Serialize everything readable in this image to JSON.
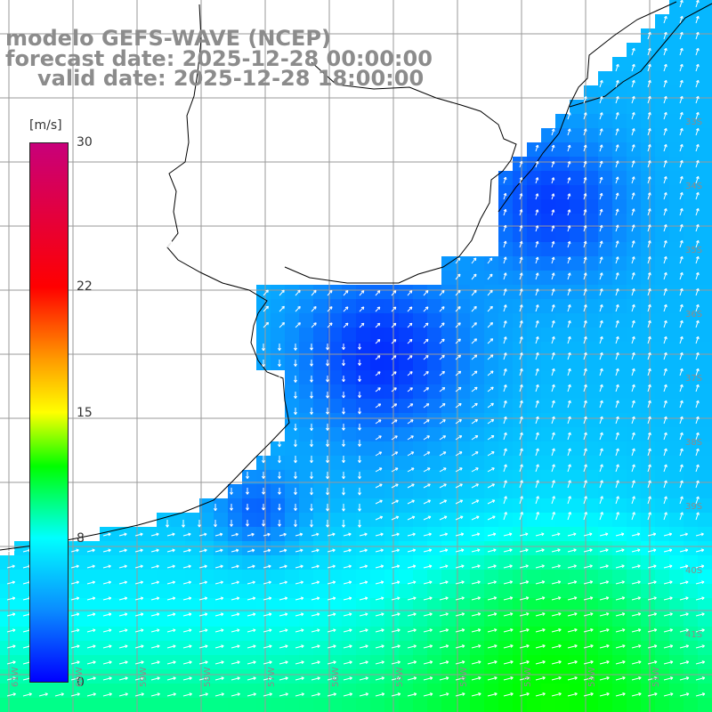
{
  "title": {
    "line1": "modelo GEFS-WAVE (NCEP)",
    "line2": "forecast date: 2025-12-28 00:00:00",
    "line3": "valid date: 2025-12-28 18:00:00"
  },
  "colorbar": {
    "unit": "[m/s]",
    "min": 0,
    "max": 30,
    "ticks": [
      "0",
      "8",
      "15",
      "22",
      "30"
    ],
    "tick_values": [
      0,
      8,
      15,
      22,
      30
    ],
    "gradient": [
      {
        "v": 0,
        "color": "#0000ff"
      },
      {
        "v": 4,
        "color": "#0a8cff"
      },
      {
        "v": 8,
        "color": "#00ffff"
      },
      {
        "v": 12,
        "color": "#00ff00"
      },
      {
        "v": 15,
        "color": "#ffff00"
      },
      {
        "v": 18,
        "color": "#ff9900"
      },
      {
        "v": 22,
        "color": "#ff0000"
      },
      {
        "v": 30,
        "color": "#c8007a"
      }
    ]
  },
  "map": {
    "grid_color": "#9a9a9a",
    "coast_color": "#000000",
    "arrow_color": "#ffffff",
    "lat_labels": [
      "33S",
      "34S",
      "35S",
      "36S",
      "37S",
      "38S",
      "39S",
      "40S",
      "41S"
    ],
    "lon_labels": [
      "61W",
      "60W",
      "59W",
      "58W",
      "57W",
      "56W",
      "55W",
      "54W",
      "53W",
      "52W",
      "51W"
    ]
  }
}
